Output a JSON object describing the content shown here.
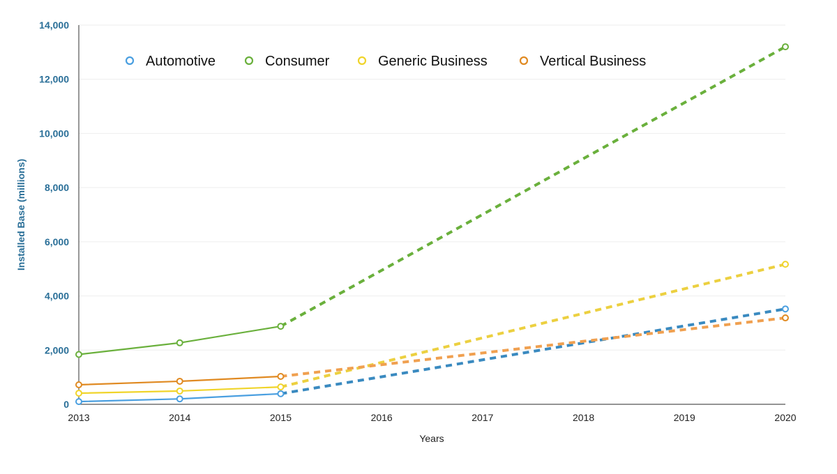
{
  "chart_data": {
    "type": "line",
    "xlabel": "Years",
    "ylabel": "Installed Base (millions)",
    "x": [
      2013,
      2014,
      2015,
      2016,
      2017,
      2018,
      2019,
      2020
    ],
    "xticks": [
      "2013",
      "2014",
      "2015",
      "2016",
      "2017",
      "2018",
      "2019",
      "2020"
    ],
    "ylim": [
      0,
      14000
    ],
    "yticks": [
      "0",
      "2,000",
      "4,000",
      "6,000",
      "8,000",
      "10,000",
      "12,000",
      "14,000"
    ],
    "ytick_values": [
      0,
      2000,
      4000,
      6000,
      8000,
      10000,
      12000,
      14000
    ],
    "grid": true,
    "legend_position": "top-left",
    "solid_through": 2015,
    "dashed_after": 2015,
    "series": [
      {
        "name": "Automotive",
        "color": "#4a9fe0",
        "dash_color": "#3a8ac0",
        "points": [
          [
            2013,
            100
          ],
          [
            2014,
            200
          ],
          [
            2015,
            390
          ],
          [
            2020,
            3520
          ]
        ]
      },
      {
        "name": "Consumer",
        "color": "#6ab03c",
        "dash_color": "#6ab03c",
        "points": [
          [
            2013,
            1840
          ],
          [
            2014,
            2270
          ],
          [
            2015,
            2880
          ],
          [
            2020,
            13200
          ]
        ]
      },
      {
        "name": "Generic Business",
        "color": "#f0d42a",
        "dash_color": "#ecd040",
        "points": [
          [
            2013,
            410
          ],
          [
            2014,
            490
          ],
          [
            2015,
            640
          ],
          [
            2020,
            5170
          ]
        ]
      },
      {
        "name": "Vertical Business",
        "color": "#e08a22",
        "dash_color": "#f0a050",
        "points": [
          [
            2013,
            720
          ],
          [
            2014,
            850
          ],
          [
            2015,
            1030
          ],
          [
            2020,
            3190
          ]
        ]
      }
    ]
  }
}
